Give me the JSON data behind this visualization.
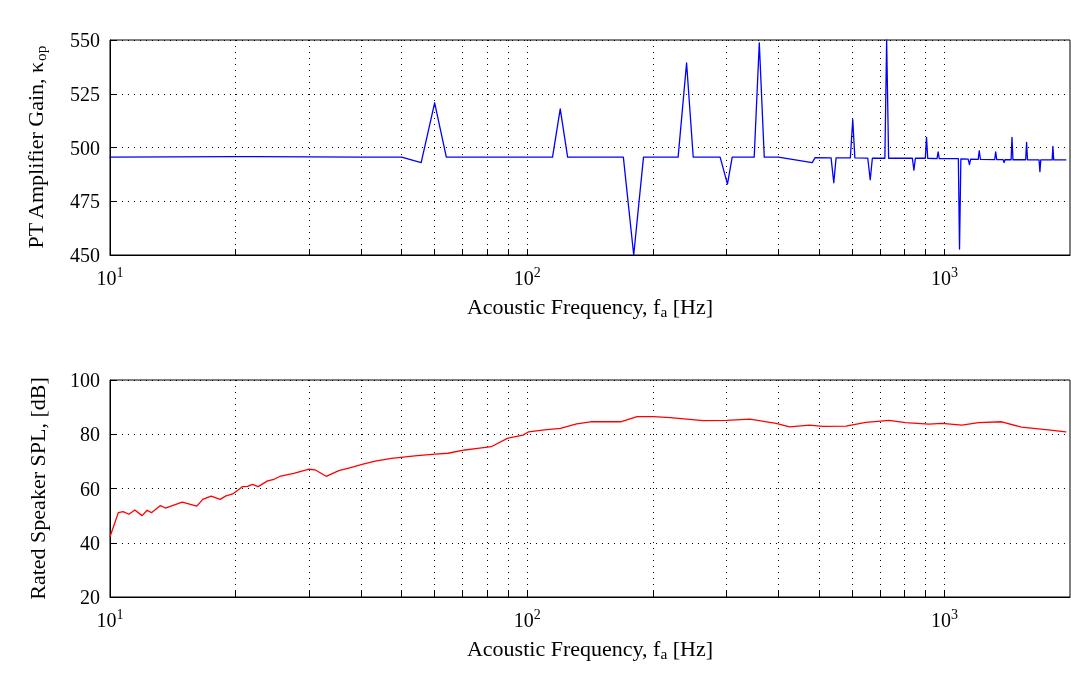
{
  "chart_data": [
    {
      "type": "line",
      "xlabel": "Acoustic Frequency, f$_{a}$ [Hz]",
      "ylabel": "PT Amplifier Gain, κ$_{op}$",
      "log": "x",
      "grid": true,
      "marker": "none",
      "line_style": "solid",
      "xlim": [
        10,
        2000
      ],
      "ylim": [
        450,
        550
      ],
      "yticks": [
        450,
        475,
        500,
        525,
        550
      ],
      "xticks": [
        {
          "value": 10,
          "label": "10$^{1}$"
        },
        {
          "value": 20,
          "label": null
        },
        {
          "value": 30,
          "label": null
        },
        {
          "value": 40,
          "label": null
        },
        {
          "value": 50,
          "label": null
        },
        {
          "value": 60,
          "label": null
        },
        {
          "value": 70,
          "label": null
        },
        {
          "value": 80,
          "label": null
        },
        {
          "value": 90,
          "label": null
        },
        {
          "value": 100,
          "label": "10$^{2}$"
        },
        {
          "value": 200,
          "label": null
        },
        {
          "value": 300,
          "label": null
        },
        {
          "value": 400,
          "label": null
        },
        {
          "value": 500,
          "label": null
        },
        {
          "value": 600,
          "label": null
        },
        {
          "value": 700,
          "label": null
        },
        {
          "value": 800,
          "label": null
        },
        {
          "value": 900,
          "label": null
        },
        {
          "value": 1000,
          "label": "10$^{3}$"
        }
      ],
      "x": [
        10,
        20,
        40,
        50,
        55.7,
        60,
        64,
        100,
        115,
        120,
        125,
        170,
        180,
        190,
        230,
        241,
        250,
        290,
        302,
        310,
        350,
        360,
        370,
        400,
        482,
        490,
        535,
        543,
        550,
        595,
        603,
        610,
        655,
        664,
        672,
        720,
        727,
        735,
        838,
        845,
        852,
        900,
        906,
        912,
        960,
        966,
        972,
        1080,
        1087,
        1095,
        1140,
        1148,
        1156,
        1205,
        1212,
        1220,
        1320,
        1327,
        1335,
        1382,
        1390,
        1398,
        1445,
        1452,
        1460,
        1566,
        1574,
        1582,
        1686,
        1694,
        1702,
        1812,
        1820,
        1828,
        1954
      ],
      "series": [
        {
          "color": "#0000ff",
          "values": [
            495.5,
            495.8,
            495.5,
            495.5,
            493,
            520.8,
            495.5,
            495.5,
            495.5,
            518,
            495.5,
            495.5,
            450,
            495.5,
            495.5,
            539.3,
            495.5,
            495.5,
            483,
            495.5,
            495.5,
            548.7,
            495.5,
            495.5,
            493,
            495.3,
            495.2,
            483.6,
            495.2,
            495.2,
            513,
            495.2,
            495.1,
            485,
            495.1,
            495,
            550,
            495,
            495,
            489.5,
            495,
            495,
            504.7,
            495,
            494.8,
            498,
            494.8,
            494.8,
            452.8,
            494.7,
            494.6,
            492,
            494.6,
            494.5,
            498.5,
            494.5,
            494.4,
            498,
            494.4,
            494.4,
            493,
            494.4,
            494.3,
            504.7,
            494.3,
            494.3,
            502.4,
            494.3,
            494.2,
            488.8,
            494.2,
            494.2,
            500.5,
            494.2,
            494.2
          ]
        }
      ]
    },
    {
      "type": "line",
      "xlabel": "Acoustic Frequency, f$_{a}$ [Hz]",
      "ylabel": "Rated Speaker SPL, [dB]",
      "log": "x",
      "grid": true,
      "marker": "none",
      "line_style": "solid",
      "xlim": [
        10,
        2000
      ],
      "ylim": [
        20,
        100
      ],
      "yticks": [
        20,
        40,
        60,
        80,
        100
      ],
      "xticks": [
        {
          "value": 10,
          "label": "10$^{1}$"
        },
        {
          "value": 20,
          "label": null
        },
        {
          "value": 30,
          "label": null
        },
        {
          "value": 40,
          "label": null
        },
        {
          "value": 50,
          "label": null
        },
        {
          "value": 60,
          "label": null
        },
        {
          "value": 70,
          "label": null
        },
        {
          "value": 80,
          "label": null
        },
        {
          "value": 90,
          "label": null
        },
        {
          "value": 100,
          "label": "10$^{2}$"
        },
        {
          "value": 200,
          "label": null
        },
        {
          "value": 300,
          "label": null
        },
        {
          "value": 400,
          "label": null
        },
        {
          "value": 500,
          "label": null
        },
        {
          "value": 600,
          "label": null
        },
        {
          "value": 700,
          "label": null
        },
        {
          "value": 800,
          "label": null
        },
        {
          "value": 900,
          "label": null
        },
        {
          "value": 1000,
          "label": "10$^{3}$"
        }
      ],
      "x": [
        10,
        10.47,
        10.75,
        11.1,
        11.47,
        11.94,
        12.27,
        12.57,
        13.21,
        13.57,
        14.9,
        16.15,
        16.68,
        17.47,
        18.36,
        18.97,
        19.69,
        20.8,
        21.37,
        21.96,
        22.66,
        23.86,
        24.74,
        25.65,
        27.57,
        30,
        31,
        32.97,
        35.36,
        37.37,
        40.2,
        43.2,
        47.3,
        53.8,
        60.1,
        64.6,
        70.9,
        76.1,
        82,
        89.6,
        97.7,
        100.8,
        110,
        120.1,
        131.4,
        141.9,
        167.4,
        183.4,
        200.9,
        220.2,
        264.4,
        300.6,
        341.6,
        395,
        425.5,
        475,
        511,
        581,
        648,
        737,
        807,
        918,
        987,
        1102,
        1207,
        1372,
        1530,
        1773,
        1954
      ],
      "series": [
        {
          "color": "#ff0000",
          "values": [
            42.2,
            51.1,
            51.5,
            50.5,
            52.1,
            50,
            52,
            51.1,
            53.7,
            52.8,
            55,
            53.5,
            56,
            57.2,
            56,
            57.3,
            58,
            60.7,
            60.8,
            61.5,
            60.7,
            62.8,
            63.4,
            64.6,
            65.6,
            67.1,
            66.9,
            64.5,
            66.6,
            67.5,
            68.9,
            70.1,
            71.1,
            72,
            72.7,
            73,
            74.2,
            74.8,
            75.4,
            78.5,
            79.7,
            80.9,
            81.6,
            82.2,
            83.8,
            84.6,
            84.6,
            86.5,
            86.5,
            86.1,
            85,
            85.1,
            85.6,
            84,
            82.7,
            83.4,
            82.9,
            83,
            84.4,
            85.1,
            84.3,
            83.7,
            84,
            83.4,
            84.3,
            84.6,
            82.6,
            81.6,
            80.9
          ]
        }
      ]
    }
  ]
}
